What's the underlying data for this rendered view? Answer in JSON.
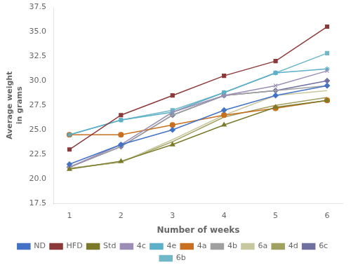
{
  "chart_data": {
    "type": "line",
    "x_label": "Number of weeks",
    "y_label": "Average weight\nin grams",
    "x": [
      1,
      2,
      3,
      4,
      5,
      6
    ],
    "series": [
      {
        "name": "ND",
        "color": "#4472C4",
        "marker": "diamond",
        "values": [
          21.5,
          23.5,
          25.0,
          27.0,
          28.5,
          29.5
        ]
      },
      {
        "name": "HFD",
        "color": "#8B3A3A",
        "marker": "square",
        "values": [
          23.0,
          26.5,
          28.5,
          30.5,
          32.0,
          35.5
        ]
      },
      {
        "name": "Std",
        "color": "#7A7A2A",
        "marker": "triangle",
        "values": [
          21.0,
          21.8,
          23.5,
          25.5,
          27.3,
          28.0
        ]
      },
      {
        "name": "4c",
        "color": "#9B8DB5",
        "marker": "x",
        "values": [
          21.2,
          23.5,
          26.8,
          28.5,
          29.5,
          31.0
        ]
      },
      {
        "name": "4e",
        "color": "#5BAFC7",
        "marker": "star",
        "values": [
          24.5,
          26.0,
          26.8,
          28.8,
          30.8,
          31.2
        ]
      },
      {
        "name": "4a",
        "color": "#C87020",
        "marker": "circle",
        "values": [
          24.5,
          24.5,
          25.5,
          26.5,
          27.2,
          28.0
        ]
      },
      {
        "name": "4b",
        "color": "#A0A0A0",
        "marker": "plus",
        "values": [
          21.2,
          23.3,
          26.5,
          28.5,
          29.0,
          29.5
        ]
      },
      {
        "name": "6a",
        "color": "#C8C8A0",
        "marker": "none",
        "values": [
          21.1,
          21.7,
          24.0,
          26.5,
          28.5,
          29.0
        ]
      },
      {
        "name": "4d",
        "color": "#A0A060",
        "marker": "none",
        "values": [
          21.1,
          21.7,
          23.8,
          26.3,
          27.5,
          28.3
        ]
      },
      {
        "name": "6c",
        "color": "#7070A0",
        "marker": "diamond",
        "values": [
          21.2,
          23.3,
          26.5,
          28.5,
          29.0,
          30.0
        ]
      },
      {
        "name": "6b",
        "color": "#70B8C8",
        "marker": "square",
        "values": [
          24.5,
          26.0,
          27.0,
          28.8,
          30.8,
          32.8
        ]
      }
    ],
    "xlim": [
      0.7,
      6.3
    ],
    "xticks": [
      1,
      2,
      3,
      4,
      5,
      6
    ],
    "ylim": [
      17.5,
      37.5
    ],
    "yticks": [
      17.5,
      {
        "value": 20,
        "label": "20.0"
      },
      22.5,
      {
        "value": 25,
        "label": "25.0"
      },
      27.5,
      {
        "value": 30,
        "label": "30.0"
      },
      32.5,
      {
        "value": 35,
        "label": "35.0"
      },
      37.5
    ],
    "grid": false,
    "legend": "bottom"
  }
}
